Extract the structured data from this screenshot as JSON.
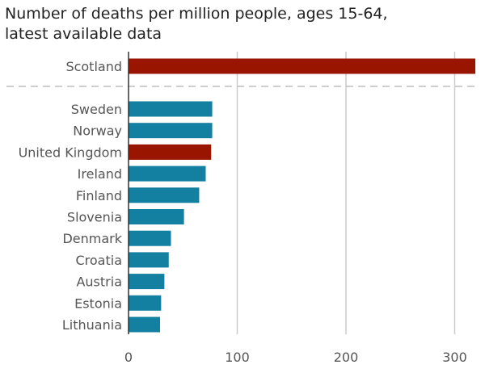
{
  "chart_data": {
    "type": "bar",
    "orientation": "horizontal",
    "title_line1": "Number of deaths per million people, ages 15-64,",
    "title_line2": "latest available data",
    "xlim": [
      0,
      320
    ],
    "xticks": [
      0,
      100,
      200,
      300
    ],
    "grid": true,
    "colors": {
      "highlight": "#9a1500",
      "default": "#1380a1",
      "grid": "#cccccc",
      "separator": "#bdbdbd"
    },
    "top_group": [
      {
        "label": "Scotland",
        "value": 319,
        "highlight": true
      }
    ],
    "main_group": [
      {
        "label": "Sweden",
        "value": 77,
        "highlight": false
      },
      {
        "label": "Norway",
        "value": 77,
        "highlight": false
      },
      {
        "label": "United Kingdom",
        "value": 76,
        "highlight": true
      },
      {
        "label": "Ireland",
        "value": 71,
        "highlight": false
      },
      {
        "label": "Finland",
        "value": 65,
        "highlight": false
      },
      {
        "label": "Slovenia",
        "value": 51,
        "highlight": false
      },
      {
        "label": "Denmark",
        "value": 39,
        "highlight": false
      },
      {
        "label": "Croatia",
        "value": 37,
        "highlight": false
      },
      {
        "label": "Austria",
        "value": 33,
        "highlight": false
      },
      {
        "label": "Estonia",
        "value": 30,
        "highlight": false
      },
      {
        "label": "Lithuania",
        "value": 29,
        "highlight": false
      }
    ]
  }
}
